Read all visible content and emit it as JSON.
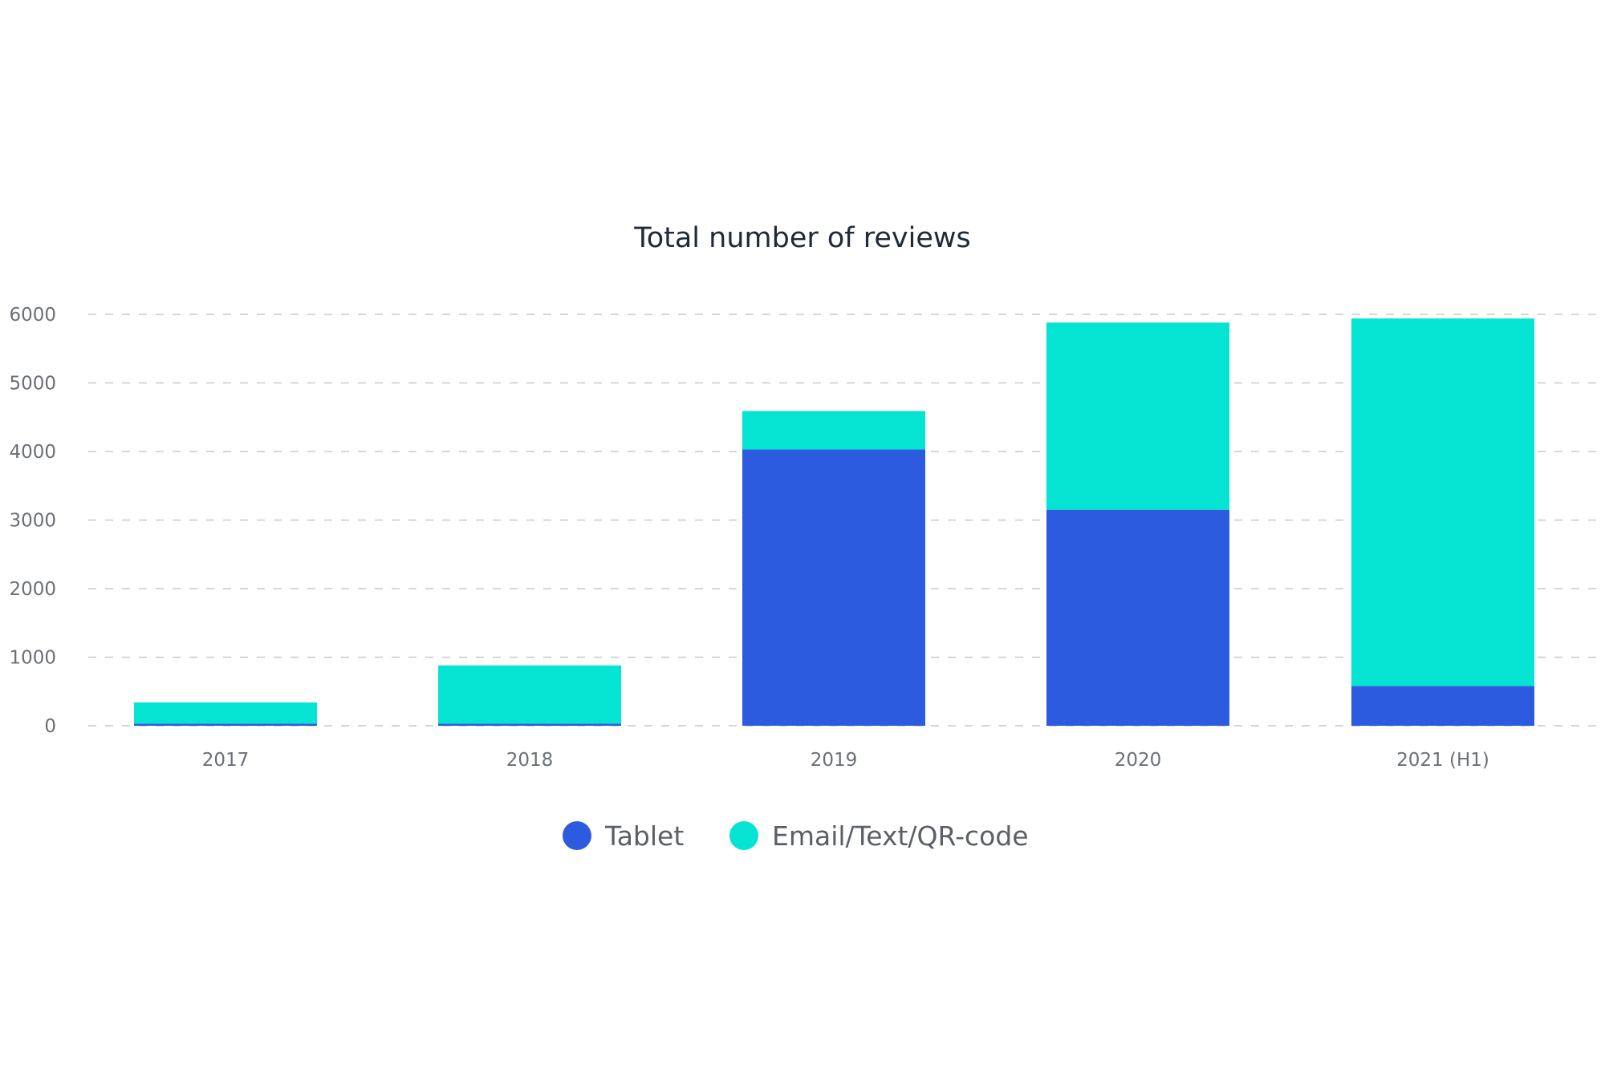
{
  "chart_data": {
    "type": "bar",
    "stacked": true,
    "title": "Total number of reviews",
    "xlabel": "",
    "ylabel": "",
    "ylim": [
      0,
      6000
    ],
    "yticks": [
      0,
      1000,
      2000,
      3000,
      4000,
      5000,
      6000
    ],
    "grid": true,
    "legend_position": "bottom",
    "categories": [
      "2017",
      "2018",
      "2019",
      "2020",
      "2021 (H1)"
    ],
    "series": [
      {
        "name": "Tablet",
        "color": "#2d5be0",
        "values": [
          30,
          30,
          4030,
          3150,
          580
        ]
      },
      {
        "name": "Email/Text/QR-code",
        "color": "#05e3d2",
        "values": [
          310,
          850,
          560,
          2730,
          5360
        ]
      }
    ]
  }
}
